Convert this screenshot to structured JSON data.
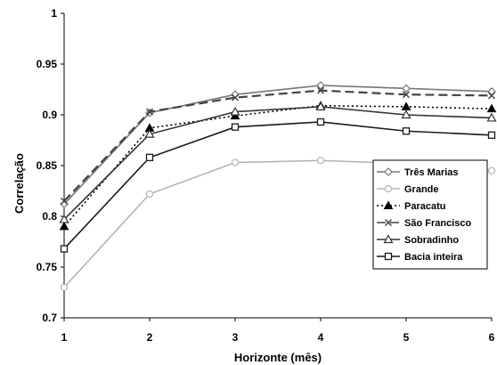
{
  "chart_data": {
    "type": "line",
    "xlabel": "Horizonte (mês)",
    "ylabel": "Correlação",
    "x": [
      1,
      2,
      3,
      4,
      5,
      6
    ],
    "xlim": [
      1,
      6
    ],
    "ylim": [
      0.7,
      1
    ],
    "yticks": [
      0.7,
      0.75,
      0.8,
      0.85,
      0.9,
      0.95,
      1
    ],
    "ytick_labels": [
      "0.7",
      "0.75",
      "0.8",
      "0.85",
      "0.9",
      "0.95",
      "1"
    ],
    "xtick_labels": [
      "1",
      "2",
      "3",
      "4",
      "5",
      "6"
    ],
    "grid": false,
    "legend_position": "bottom-right",
    "series": [
      {
        "name": "Três Marias",
        "values": [
          0.812,
          0.902,
          0.92,
          0.929,
          0.926,
          0.923
        ],
        "color": "#777777",
        "dash": "",
        "marker": "diamond"
      },
      {
        "name": "Grande",
        "values": [
          0.73,
          0.822,
          0.853,
          0.855,
          0.852,
          0.845
        ],
        "color": "#b5b5b5",
        "dash": "",
        "marker": "circle"
      },
      {
        "name": "Paracatu",
        "values": [
          0.79,
          0.887,
          0.899,
          0.909,
          0.908,
          0.906
        ],
        "color": "#000000",
        "dash": "2,3",
        "marker": "triangle"
      },
      {
        "name": "São Francisco",
        "values": [
          0.815,
          0.903,
          0.917,
          0.924,
          0.92,
          0.919
        ],
        "color": "#444444",
        "dash": "10,5",
        "marker": "x"
      },
      {
        "name": "Sobradinho",
        "values": [
          0.797,
          0.881,
          0.903,
          0.908,
          0.9,
          0.897
        ],
        "color": "#333333",
        "dash": "",
        "marker": "triangle-open"
      },
      {
        "name": "Bacia inteira",
        "values": [
          0.768,
          0.858,
          0.888,
          0.893,
          0.884,
          0.88
        ],
        "color": "#1a1a1a",
        "dash": "",
        "marker": "square"
      }
    ]
  }
}
